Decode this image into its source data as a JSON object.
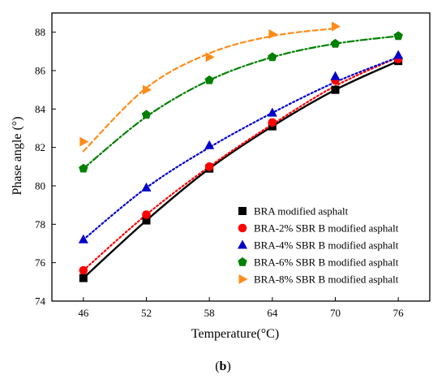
{
  "caption": {
    "open": "(",
    "letter": "b",
    "close": ")"
  },
  "chart_data": {
    "type": "scatter",
    "xlabel": "Temperature(°C)",
    "ylabel": "Phase angle (°)",
    "x": [
      46,
      52,
      58,
      64,
      70,
      76
    ],
    "xlim": [
      43,
      79
    ],
    "ylim": [
      74,
      89
    ],
    "xticks": [
      46,
      52,
      58,
      64,
      70,
      76
    ],
    "yticks": [
      74,
      76,
      78,
      80,
      82,
      84,
      86,
      88
    ],
    "grid": false,
    "legend_position": "bottom-right",
    "series": [
      {
        "name": " BRA modified asphalt",
        "marker": "square",
        "color": "#000000",
        "line": "solid",
        "values": [
          75.2,
          78.2,
          80.9,
          83.1,
          85.0,
          86.5
        ],
        "fit": [
          75.2,
          78.2,
          80.9,
          83.1,
          85.0,
          86.5
        ]
      },
      {
        "name": "BRA-2% SBR B modified asphalt",
        "marker": "circle",
        "color": "#ff0000",
        "line": "dotted",
        "values": [
          75.6,
          78.5,
          81.0,
          83.3,
          85.5,
          86.6
        ],
        "fit": [
          75.6,
          78.5,
          81.0,
          83.2,
          85.2,
          86.7
        ]
      },
      {
        "name": "BRA-4% SBR B modified asphalt",
        "marker": "triangle",
        "color": "#0000cc",
        "line": "dotted",
        "values": [
          77.2,
          79.9,
          82.1,
          83.8,
          85.7,
          86.8
        ],
        "fit": [
          77.2,
          79.9,
          82.0,
          83.8,
          85.4,
          86.7
        ]
      },
      {
        "name": "BRA-6% SBR B modified asphalt",
        "marker": "pentagon",
        "color": "#008000",
        "line": "dashdot",
        "values": [
          80.9,
          83.7,
          85.5,
          86.7,
          87.4,
          87.8
        ],
        "fit": [
          80.9,
          83.6,
          85.5,
          86.7,
          87.4,
          87.8
        ]
      },
      {
        "name": "BRA-8% SBR B modified asphalt",
        "marker": "triangle-right",
        "color": "#ff8c1a",
        "line": "dashed",
        "values": [
          82.3,
          85.0,
          86.7,
          87.9,
          88.3
        ],
        "x": [
          46,
          52,
          58,
          64,
          70
        ],
        "fit": [
          81.8,
          85.1,
          86.9,
          87.8,
          88.2
        ]
      }
    ]
  }
}
